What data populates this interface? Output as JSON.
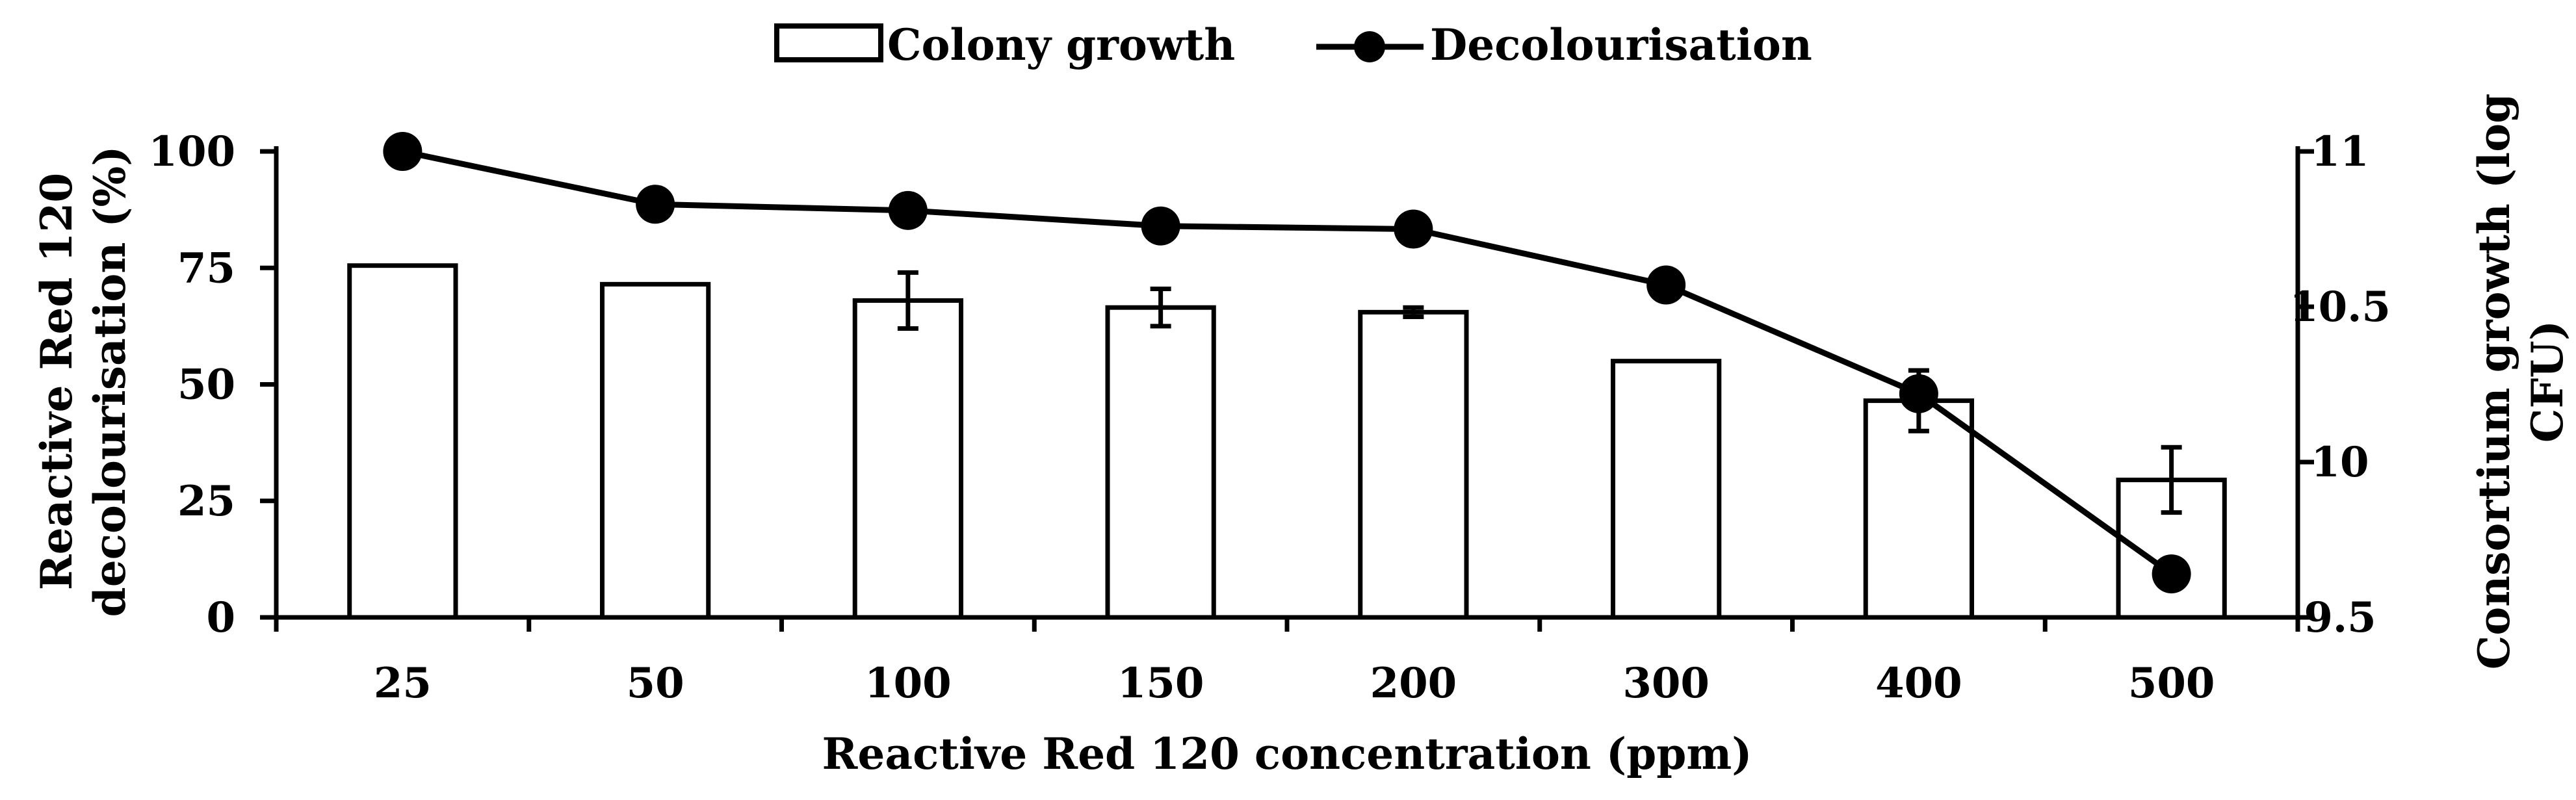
{
  "chart_data": {
    "type": "bar+line",
    "title": "",
    "categories": [
      "25",
      "50",
      "100",
      "150",
      "200",
      "300",
      "400",
      "500"
    ],
    "xlabel": "Reactive Red 120  concentration (ppm)",
    "ylabel_left_lines": [
      "Reactive Red 120",
      "decolourisation (%)"
    ],
    "ylabel_right_lines": [
      "Consortium growth (log",
      "CFU)"
    ],
    "left_axis": {
      "min": 0,
      "max": 100,
      "ticks": [
        0,
        25,
        50,
        75,
        100
      ],
      "tick_labels": [
        "0",
        "25",
        "50",
        "75",
        "100"
      ]
    },
    "right_axis": {
      "min": 9.5,
      "max": 11,
      "ticks": [
        9.5,
        10,
        10.5,
        11
      ],
      "tick_labels": [
        "9.5",
        "10",
        "10.5",
        "11"
      ]
    },
    "series": [
      {
        "name": "Colony growth",
        "kind": "bar",
        "axis": "left",
        "values": [
          75.5,
          71.5,
          68,
          66.5,
          65.5,
          55,
          46.5,
          29.5
        ],
        "errors": [
          0.5,
          0.5,
          6,
          4,
          1,
          0.5,
          6.5,
          7
        ]
      },
      {
        "name": "Decolourisation",
        "kind": "line",
        "axis": "right",
        "values": [
          11.0,
          10.83,
          10.81,
          10.76,
          10.75,
          10.57,
          10.22,
          9.64
        ],
        "errors": [
          0.04,
          0.02,
          0.04,
          0.03,
          0.02,
          0.02,
          0.04,
          0.0
        ]
      }
    ],
    "legend": {
      "position": "top-center",
      "entries": [
        "Colony growth",
        "Decolourisation"
      ]
    },
    "grid": false
  },
  "colors": {
    "bar_fill": "#ffffff",
    "stroke": "#000000"
  }
}
